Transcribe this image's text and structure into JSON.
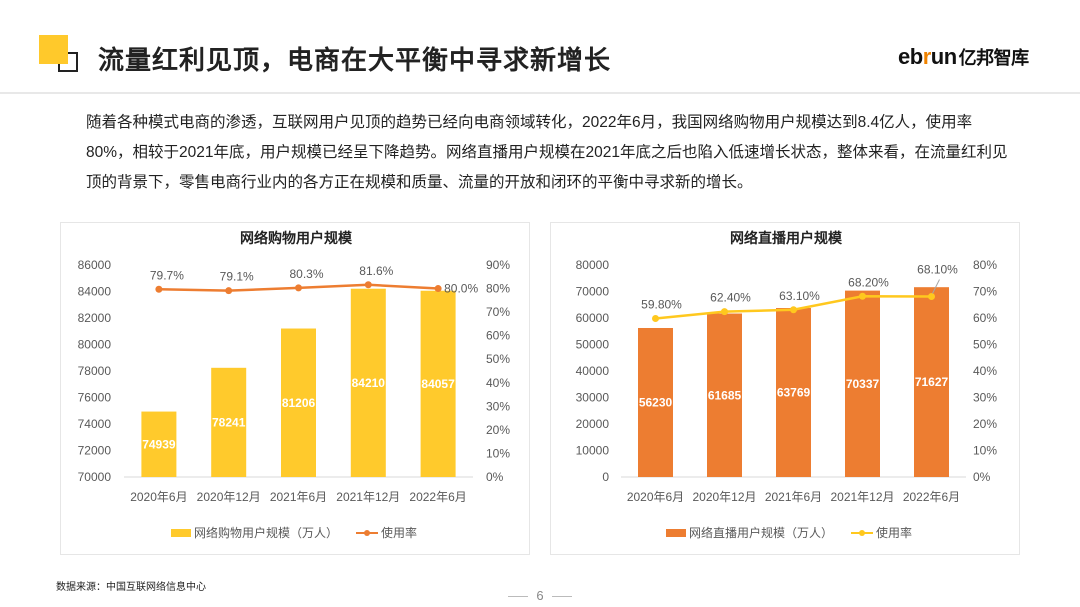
{
  "header": {
    "title": "流量红利见顶，电商在大平衡中寻求新增长",
    "logo_text": "ebrun亿邦智库"
  },
  "paragraph": "随着各种模式电商的渗透，互联网用户见顶的趋势已经向电商领域转化，2022年6月，我国网络购物用户规模达到8.4亿人，使用率80%，相较于2021年底，用户规模已经呈下降趋势。网络直播用户规模在2021年底之后也陷入低速增长状态，整体来看，在流量红利见顶的背景下，零售电商行业内的各方正在规模和质量、流量的开放和闭环的平衡中寻求新的增长。",
  "footer": {
    "source": "数据来源：中国互联网络信息中心",
    "page": "6"
  },
  "chart_data": [
    {
      "type": "bar+line",
      "title": "网络购物用户规模",
      "categories": [
        "2020年6月",
        "2020年12月",
        "2021年6月",
        "2021年12月",
        "2022年6月"
      ],
      "series": [
        {
          "name": "网络购物用户规模（万人）",
          "type": "bar",
          "axis": "left",
          "values": [
            74939,
            78241,
            81206,
            84210,
            84057
          ],
          "labels": [
            "74939",
            "78241",
            "81206",
            "84210",
            "84057"
          ],
          "color": "#FFCA2C"
        },
        {
          "name": "使用率",
          "type": "line",
          "axis": "right",
          "values": [
            79.7,
            79.1,
            80.3,
            81.6,
            80.0
          ],
          "labels": [
            "79.7%",
            "79.1%",
            "80.3%",
            "81.6%",
            "80.0%"
          ],
          "color": "#ED7D31"
        }
      ],
      "ylim_left": [
        70000,
        86000
      ],
      "yticks_left": [
        "70000",
        "72000",
        "74000",
        "76000",
        "78000",
        "80000",
        "82000",
        "84000",
        "86000"
      ],
      "ylim_right": [
        0,
        90
      ],
      "yticks_right": [
        "0%",
        "10%",
        "20%",
        "30%",
        "40%",
        "50%",
        "60%",
        "70%",
        "80%",
        "90%"
      ],
      "legend": "bottom",
      "grid": false
    },
    {
      "type": "bar+line",
      "title": "网络直播用户规模",
      "categories": [
        "2020年6月",
        "2020年12月",
        "2021年6月",
        "2021年12月",
        "2022年6月"
      ],
      "series": [
        {
          "name": "网络直播用户规模（万人）",
          "type": "bar",
          "axis": "left",
          "values": [
            56230,
            61685,
            63769,
            70337,
            71627
          ],
          "labels": [
            "56230",
            "61685",
            "63769",
            "70337",
            "71627"
          ],
          "color": "#ED7D31"
        },
        {
          "name": "使用率",
          "type": "line",
          "axis": "right",
          "values": [
            59.8,
            62.4,
            63.1,
            68.2,
            68.1
          ],
          "labels": [
            "59.80%",
            "62.40%",
            "63.10%",
            "68.20%",
            "68.10%"
          ],
          "color": "#FFC81E"
        }
      ],
      "ylim_left": [
        0,
        80000
      ],
      "yticks_left": [
        "0",
        "10000",
        "20000",
        "30000",
        "40000",
        "50000",
        "60000",
        "70000",
        "80000"
      ],
      "ylim_right": [
        0,
        80
      ],
      "yticks_right": [
        "0%",
        "10%",
        "20%",
        "30%",
        "40%",
        "50%",
        "60%",
        "70%",
        "80%"
      ],
      "legend": "bottom",
      "grid": false
    }
  ]
}
